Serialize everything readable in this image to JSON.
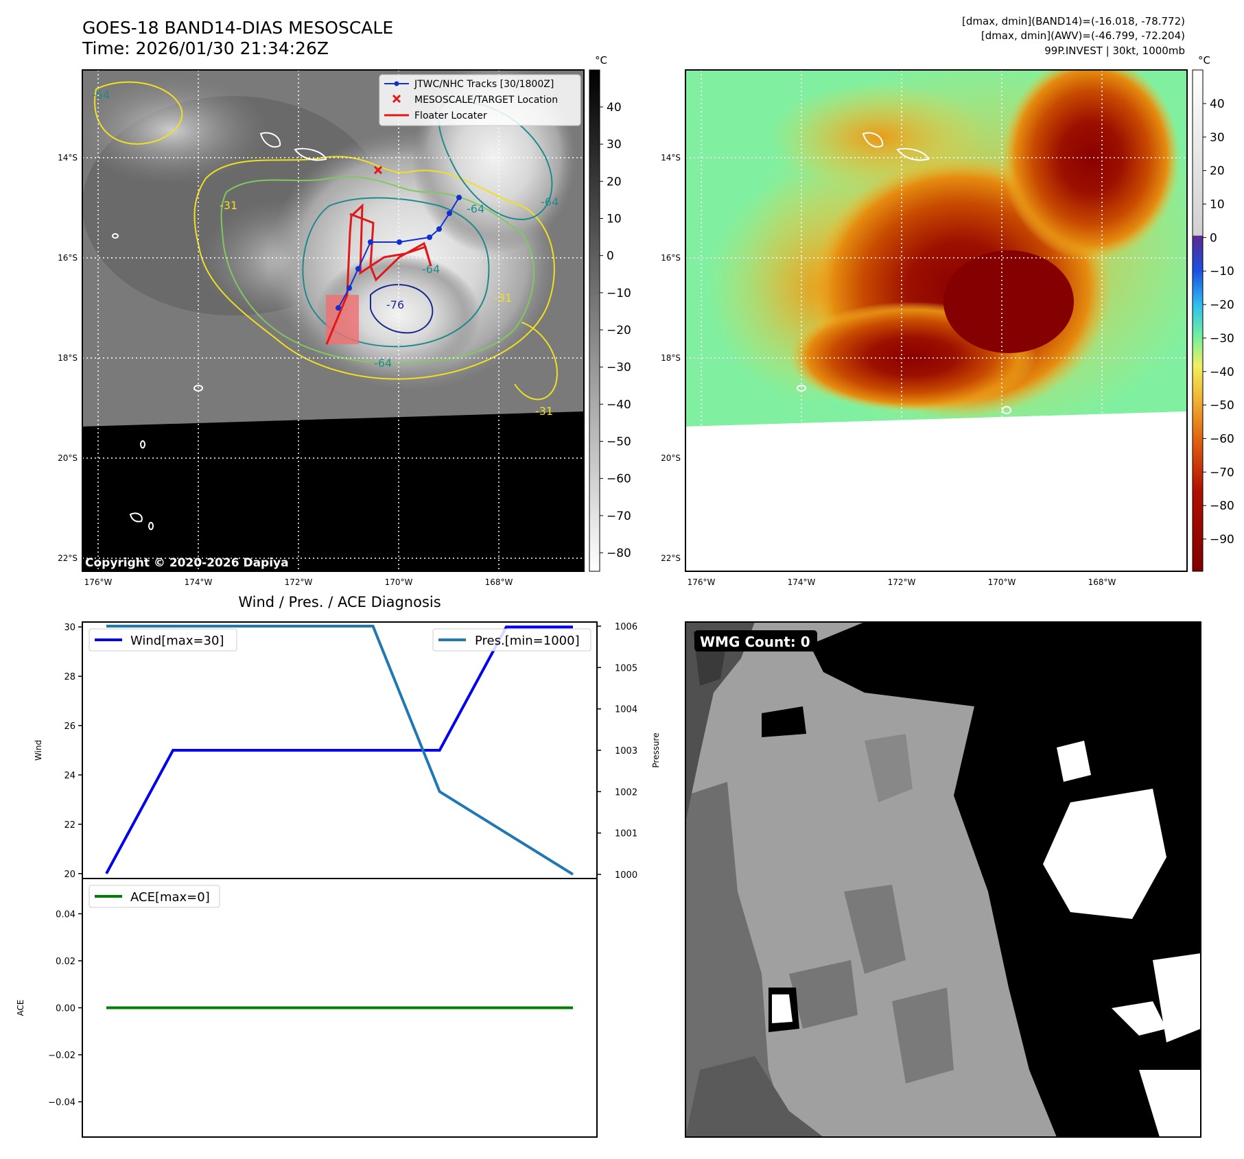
{
  "header": {
    "title_line1": "GOES-18 BAND14-DIAS MESOSCALE",
    "title_line2": "Time: 2026/01/30 21:34:26Z",
    "info_line1": "[dmax, dmin](BAND14)=(-16.018, -78.772)",
    "info_line2": "[dmax, dmin](AWV)=(-46.799, -72.204)",
    "info_line3": "99P.INVEST | 30kt, 1000mb"
  },
  "ir_panel": {
    "lon_labels": [
      "176°W",
      "174°W",
      "172°W",
      "170°W",
      "168°W"
    ],
    "lat_labels": [
      "14°S",
      "16°S",
      "18°S",
      "20°S",
      "22°S"
    ],
    "copyright": "Copyright © 2020-2026 Dapiya",
    "contour_labels": [
      "-54",
      "-31",
      "-64",
      "-64",
      "-76",
      "-64",
      "-31",
      "-31",
      "-64"
    ],
    "legend": {
      "track": "JTWC/NHC Tracks [30/1800Z]",
      "target": "MESOSCALE/TARGET Location",
      "floater": "Floater Locater"
    },
    "colorbar": {
      "unit": "°C",
      "ticks": [
        "40",
        "30",
        "20",
        "10",
        "0",
        "−10",
        "−20",
        "−30",
        "−40",
        "−50",
        "−60",
        "−70",
        "−80"
      ]
    }
  },
  "awv_panel": {
    "lon_labels": [
      "176°W",
      "174°W",
      "172°W",
      "170°W",
      "168°W"
    ],
    "lat_labels": [
      "14°S",
      "16°S",
      "18°S",
      "20°S",
      "22°S"
    ],
    "colorbar": {
      "unit": "°C",
      "ticks": [
        "40",
        "30",
        "20",
        "10",
        "0",
        "−10",
        "−20",
        "−30",
        "−40",
        "−50",
        "−60",
        "−70",
        "−80",
        "−90"
      ]
    }
  },
  "wmg_panel": {
    "label": "WMG Count: 0"
  },
  "colors": {
    "wind": "#0000ee",
    "pressure": "#1f77b4",
    "ace": "#008000",
    "track": "#1030d0",
    "floater": "#e01818",
    "target": "#e01818"
  },
  "chart_data": [
    {
      "type": "line",
      "title": "Wind / Pres. / ACE Diagnosis",
      "xlabel": "",
      "ylabel": "Wind",
      "ylim": [
        19.8,
        30.2
      ],
      "yticks": [
        "30",
        "28",
        "26",
        "24",
        "22",
        "20"
      ],
      "y2label": "Pressure",
      "y2lim": [
        999.9,
        1006.1
      ],
      "y2ticks": [
        "1006",
        "1005",
        "1004",
        "1003",
        "1002",
        "1001",
        "1000"
      ],
      "x": [
        0,
        1,
        2,
        3,
        4,
        5,
        6,
        7
      ],
      "series": [
        {
          "name": "Wind[max=30]",
          "axis": "left",
          "values": [
            20,
            25,
            25,
            25,
            25,
            25,
            30,
            30
          ]
        },
        {
          "name": "Pres.[min=1000]",
          "axis": "right",
          "values": [
            1006,
            1006,
            1006,
            1006,
            1006,
            1002,
            1001,
            1000
          ]
        }
      ]
    },
    {
      "type": "line",
      "xlabel": "",
      "ylabel": "ACE",
      "ylim": [
        -0.055,
        0.055
      ],
      "yticks": [
        "0.04",
        "0.02",
        "0.00",
        "−0.02",
        "−0.04"
      ],
      "x": [
        0,
        1,
        2,
        3,
        4,
        5,
        6,
        7
      ],
      "series": [
        {
          "name": "ACE[max=0]",
          "values": [
            0,
            0,
            0,
            0,
            0,
            0,
            0,
            0
          ]
        }
      ]
    }
  ]
}
